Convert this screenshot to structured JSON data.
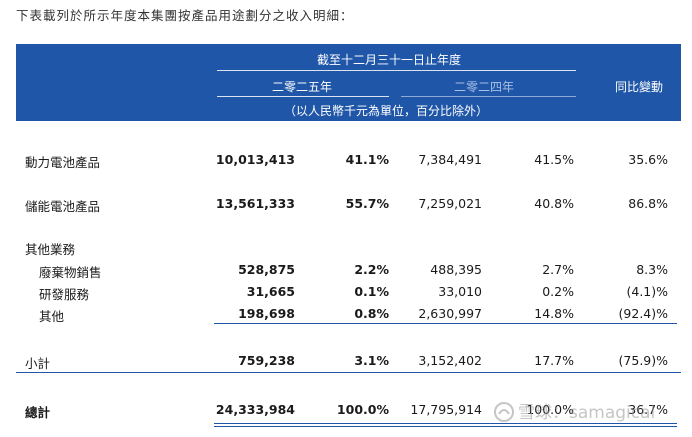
{
  "intro": "下表載列於所示年度本集團按產品用途劃分之收入明細：",
  "header": {
    "period_title": "截至十二月三十一日止年度",
    "year_2025": "二零二五年",
    "year_2024": "二零二四年",
    "yoy": "同比變動",
    "units": "（以人民幣千元為單位，百分比除外）"
  },
  "rows": [
    {
      "label": "動力電池產品",
      "v2025": "10,013,413",
      "p2025": "41.1%",
      "v2024": "7,384,491",
      "p2024": "41.5%",
      "chg": "35.6%"
    },
    {
      "label": "儲能電池產品",
      "v2025": "13,561,333",
      "p2025": "55.7%",
      "v2024": "7,259,021",
      "p2024": "40.8%",
      "chg": "86.8%"
    },
    {
      "label": "其他業務"
    },
    {
      "label": "廢棄物銷售",
      "v2025": "528,875",
      "p2025": "2.2%",
      "v2024": "488,395",
      "p2024": "2.7%",
      "chg": "8.3%"
    },
    {
      "label": "研發服務",
      "v2025": "31,665",
      "p2025": "0.1%",
      "v2024": "33,010",
      "p2024": "0.2%",
      "chg": "(4.1)%"
    },
    {
      "label": "其他",
      "v2025": "198,698",
      "p2025": "0.8%",
      "v2024": "2,630,997",
      "p2024": "14.8%",
      "chg": "(92.4)%"
    },
    {
      "label": "小計",
      "v2025": "759,238",
      "p2025": "3.1%",
      "v2024": "3,152,402",
      "p2024": "17.7%",
      "chg": "(75.9)%"
    },
    {
      "label": "總計",
      "v2025": "24,333,984",
      "p2025": "100.0%",
      "v2024": "17,795,914",
      "p2024": "100.0%",
      "chg": "36.7%"
    }
  ],
  "watermark": "雪球：samagical",
  "colors": {
    "header_bg": "#1f56a8",
    "rule": "#1f56a8"
  }
}
